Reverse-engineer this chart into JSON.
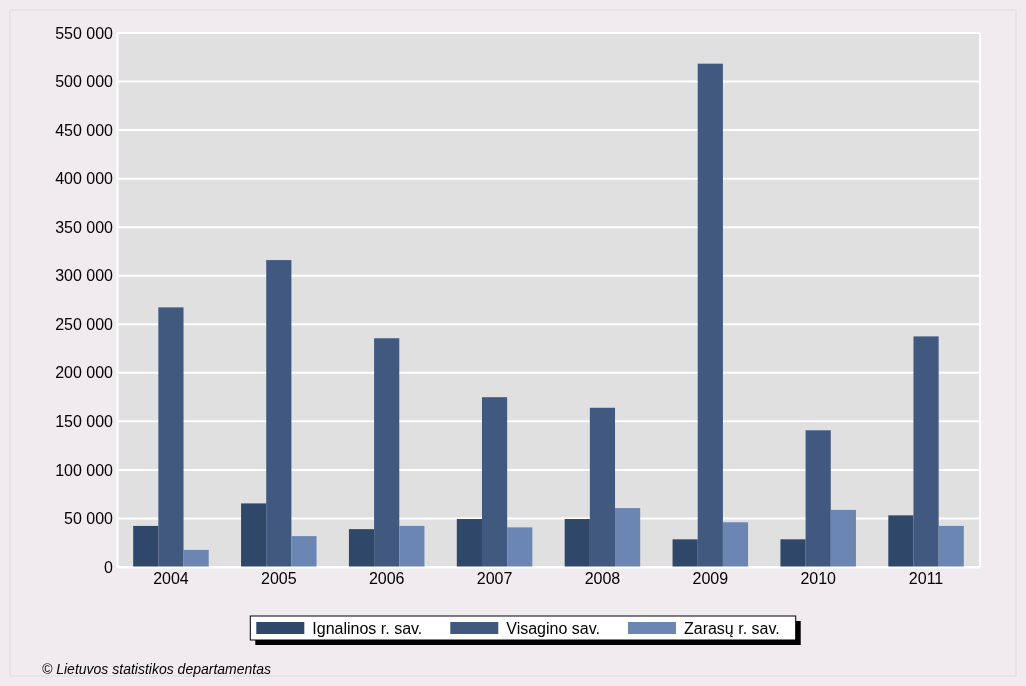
{
  "chart_data": {
    "type": "bar",
    "categories": [
      "2004",
      "2005",
      "2006",
      "2007",
      "2008",
      "2009",
      "2010",
      "2011"
    ],
    "series": [
      {
        "name": "Ignalinos r. sav.",
        "color": "#2f4769",
        "values": [
          42300,
          65500,
          39000,
          49400,
          49400,
          28500,
          28500,
          53200
        ]
      },
      {
        "name": "Visagino sav.",
        "color": "#41587f",
        "values": [
          267400,
          316100,
          235600,
          174900,
          164000,
          518400,
          140800,
          237500
        ]
      },
      {
        "name": "Zarasų r. sav.",
        "color": "#6c86b4",
        "values": [
          17600,
          31800,
          42300,
          40800,
          60700,
          46100,
          58800,
          42300
        ]
      }
    ],
    "ylim": [
      0,
      550000
    ],
    "yticks": [
      0,
      {
        "value": 50000,
        "label": "50 000"
      },
      {
        "value": 100000,
        "label": "100 000"
      },
      {
        "value": 150000,
        "label": "150 000"
      },
      {
        "value": 200000,
        "label": "200 000"
      },
      {
        "value": 250000,
        "label": "250 000"
      },
      {
        "value": 300000,
        "label": "300 000"
      },
      {
        "value": 350000,
        "label": "350 000"
      },
      {
        "value": 400000,
        "label": "400 000"
      },
      {
        "value": 450000,
        "label": "450 000"
      },
      {
        "value": 500000,
        "label": "500 000"
      },
      {
        "value": 550000,
        "label": "550 000"
      }
    ],
    "grid": "y",
    "legend": "bottom",
    "annotations": [
      "© Lietuvos statistikos departamentas"
    ]
  }
}
